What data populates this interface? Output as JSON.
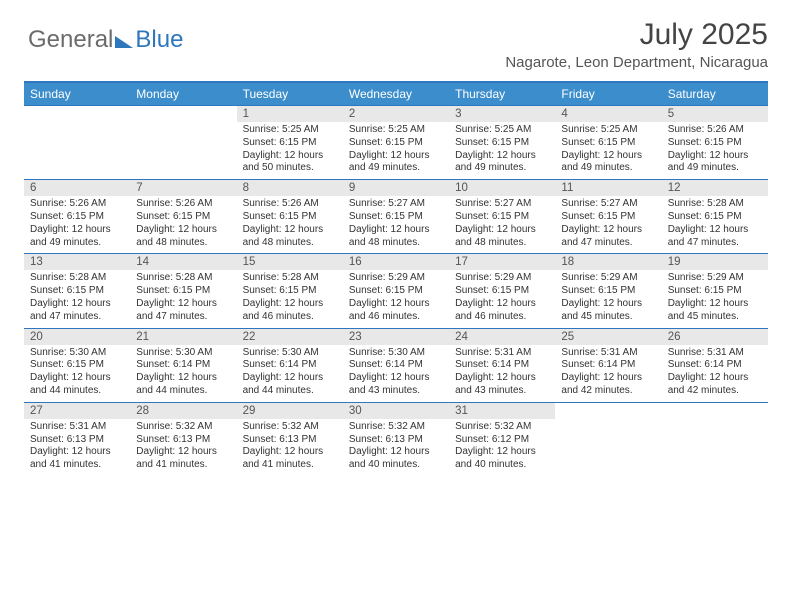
{
  "logo": {
    "part1": "General",
    "part2": "Blue"
  },
  "title": "July 2025",
  "subtitle": "Nagarote, Leon Department, Nicaragua",
  "colors": {
    "header_bg": "#3c8dcc",
    "border": "#2e77bd",
    "daynum_bg": "#e8e8e8",
    "text": "#333333"
  },
  "calendar": {
    "type": "table",
    "columns": [
      "Sunday",
      "Monday",
      "Tuesday",
      "Wednesday",
      "Thursday",
      "Friday",
      "Saturday"
    ],
    "first_weekday_index": 2,
    "days": [
      {
        "n": 1,
        "sunrise": "5:25 AM",
        "sunset": "6:15 PM",
        "daylight": "12 hours and 50 minutes."
      },
      {
        "n": 2,
        "sunrise": "5:25 AM",
        "sunset": "6:15 PM",
        "daylight": "12 hours and 49 minutes."
      },
      {
        "n": 3,
        "sunrise": "5:25 AM",
        "sunset": "6:15 PM",
        "daylight": "12 hours and 49 minutes."
      },
      {
        "n": 4,
        "sunrise": "5:25 AM",
        "sunset": "6:15 PM",
        "daylight": "12 hours and 49 minutes."
      },
      {
        "n": 5,
        "sunrise": "5:26 AM",
        "sunset": "6:15 PM",
        "daylight": "12 hours and 49 minutes."
      },
      {
        "n": 6,
        "sunrise": "5:26 AM",
        "sunset": "6:15 PM",
        "daylight": "12 hours and 49 minutes."
      },
      {
        "n": 7,
        "sunrise": "5:26 AM",
        "sunset": "6:15 PM",
        "daylight": "12 hours and 48 minutes."
      },
      {
        "n": 8,
        "sunrise": "5:26 AM",
        "sunset": "6:15 PM",
        "daylight": "12 hours and 48 minutes."
      },
      {
        "n": 9,
        "sunrise": "5:27 AM",
        "sunset": "6:15 PM",
        "daylight": "12 hours and 48 minutes."
      },
      {
        "n": 10,
        "sunrise": "5:27 AM",
        "sunset": "6:15 PM",
        "daylight": "12 hours and 48 minutes."
      },
      {
        "n": 11,
        "sunrise": "5:27 AM",
        "sunset": "6:15 PM",
        "daylight": "12 hours and 47 minutes."
      },
      {
        "n": 12,
        "sunrise": "5:28 AM",
        "sunset": "6:15 PM",
        "daylight": "12 hours and 47 minutes."
      },
      {
        "n": 13,
        "sunrise": "5:28 AM",
        "sunset": "6:15 PM",
        "daylight": "12 hours and 47 minutes."
      },
      {
        "n": 14,
        "sunrise": "5:28 AM",
        "sunset": "6:15 PM",
        "daylight": "12 hours and 47 minutes."
      },
      {
        "n": 15,
        "sunrise": "5:28 AM",
        "sunset": "6:15 PM",
        "daylight": "12 hours and 46 minutes."
      },
      {
        "n": 16,
        "sunrise": "5:29 AM",
        "sunset": "6:15 PM",
        "daylight": "12 hours and 46 minutes."
      },
      {
        "n": 17,
        "sunrise": "5:29 AM",
        "sunset": "6:15 PM",
        "daylight": "12 hours and 46 minutes."
      },
      {
        "n": 18,
        "sunrise": "5:29 AM",
        "sunset": "6:15 PM",
        "daylight": "12 hours and 45 minutes."
      },
      {
        "n": 19,
        "sunrise": "5:29 AM",
        "sunset": "6:15 PM",
        "daylight": "12 hours and 45 minutes."
      },
      {
        "n": 20,
        "sunrise": "5:30 AM",
        "sunset": "6:15 PM",
        "daylight": "12 hours and 44 minutes."
      },
      {
        "n": 21,
        "sunrise": "5:30 AM",
        "sunset": "6:14 PM",
        "daylight": "12 hours and 44 minutes."
      },
      {
        "n": 22,
        "sunrise": "5:30 AM",
        "sunset": "6:14 PM",
        "daylight": "12 hours and 44 minutes."
      },
      {
        "n": 23,
        "sunrise": "5:30 AM",
        "sunset": "6:14 PM",
        "daylight": "12 hours and 43 minutes."
      },
      {
        "n": 24,
        "sunrise": "5:31 AM",
        "sunset": "6:14 PM",
        "daylight": "12 hours and 43 minutes."
      },
      {
        "n": 25,
        "sunrise": "5:31 AM",
        "sunset": "6:14 PM",
        "daylight": "12 hours and 42 minutes."
      },
      {
        "n": 26,
        "sunrise": "5:31 AM",
        "sunset": "6:14 PM",
        "daylight": "12 hours and 42 minutes."
      },
      {
        "n": 27,
        "sunrise": "5:31 AM",
        "sunset": "6:13 PM",
        "daylight": "12 hours and 41 minutes."
      },
      {
        "n": 28,
        "sunrise": "5:32 AM",
        "sunset": "6:13 PM",
        "daylight": "12 hours and 41 minutes."
      },
      {
        "n": 29,
        "sunrise": "5:32 AM",
        "sunset": "6:13 PM",
        "daylight": "12 hours and 41 minutes."
      },
      {
        "n": 30,
        "sunrise": "5:32 AM",
        "sunset": "6:13 PM",
        "daylight": "12 hours and 40 minutes."
      },
      {
        "n": 31,
        "sunrise": "5:32 AM",
        "sunset": "6:12 PM",
        "daylight": "12 hours and 40 minutes."
      }
    ],
    "labels": {
      "sunrise": "Sunrise:",
      "sunset": "Sunset:",
      "daylight": "Daylight:"
    }
  }
}
